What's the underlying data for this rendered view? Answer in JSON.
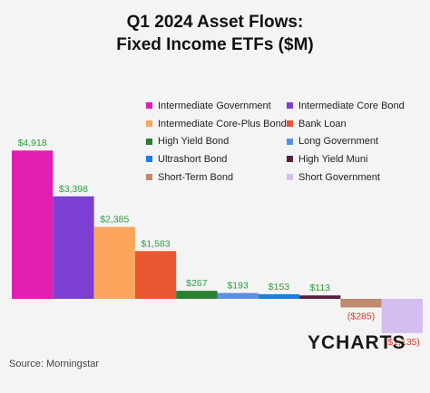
{
  "title_line1": "Q1 2024 Asset Flows:",
  "title_line2": "Fixed Income ETFs ($M)",
  "source": "Source: Morningstar",
  "logo": "YCHARTS",
  "colors": {
    "positive_label": "#2e9e3e",
    "negative_label": "#d83a2a"
  },
  "chart_data": {
    "type": "bar",
    "categories": [
      "Intermediate Government",
      "Intermediate Core Bond",
      "Intermediate Core-Plus Bond",
      "Bank Loan",
      "High Yield Bond",
      "Long Government",
      "Ultrashort Bond",
      "High Yield Muni",
      "Short-Term Bond",
      "Short Government"
    ],
    "values": [
      4918,
      3398,
      2385,
      1583,
      267,
      193,
      153,
      113,
      -285,
      -1135
    ],
    "value_labels": [
      "$4,918",
      "$3,398",
      "$2,385",
      "$1,583",
      "$267",
      "$193",
      "$153",
      "$113",
      "($285)",
      "($1,135)"
    ],
    "colors": [
      "#e01fb2",
      "#7c3fd4",
      "#fca55c",
      "#ea5631",
      "#2b7f33",
      "#5b8ee6",
      "#1a7fe0",
      "#581e40",
      "#be8a70",
      "#d6bdf0"
    ],
    "title": "Q1 2024 Asset Flows: Fixed Income ETFs ($M)",
    "legend_position": "top-right",
    "grid": false
  }
}
